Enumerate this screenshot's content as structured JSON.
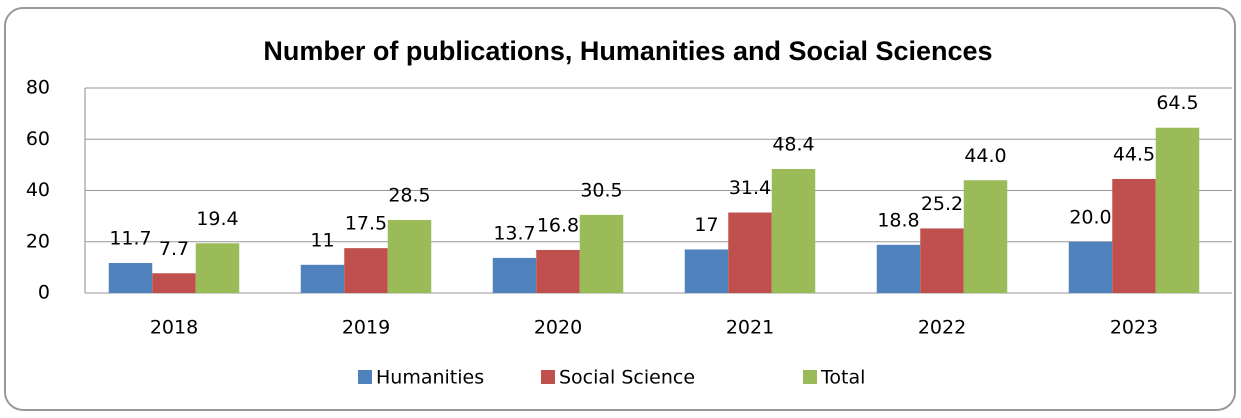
{
  "chart_data": {
    "type": "bar",
    "title": "Number of publications, Humanities and Social Sciences",
    "categories": [
      "2018",
      "2019",
      "2020",
      "2021",
      "2022",
      "2023"
    ],
    "series": [
      {
        "name": "Humanities",
        "color": "#4f81bd",
        "values": [
          11.7,
          11,
          13.7,
          17,
          18.8,
          20.0
        ],
        "value_labels": [
          "11.7",
          "11",
          "13.7",
          "17",
          "18.8",
          "20.0"
        ]
      },
      {
        "name": "Social Science",
        "color": "#c0504d",
        "values": [
          7.7,
          17.5,
          16.8,
          31.4,
          25.2,
          44.5
        ],
        "value_labels": [
          "7.7",
          "17.5",
          "16.8",
          "31.4",
          "25.2",
          "44.5"
        ]
      },
      {
        "name": "Total",
        "color": "#9bbb59",
        "values": [
          19.4,
          28.5,
          30.5,
          48.4,
          44.0,
          64.5
        ],
        "value_labels": [
          "19.4",
          "28.5",
          "30.5",
          "48.4",
          "44.0",
          "64.5"
        ]
      }
    ],
    "ylim": [
      0,
      80
    ],
    "yticks": [
      0,
      20,
      40,
      60,
      80
    ],
    "grid": true,
    "legend": "bottom"
  }
}
